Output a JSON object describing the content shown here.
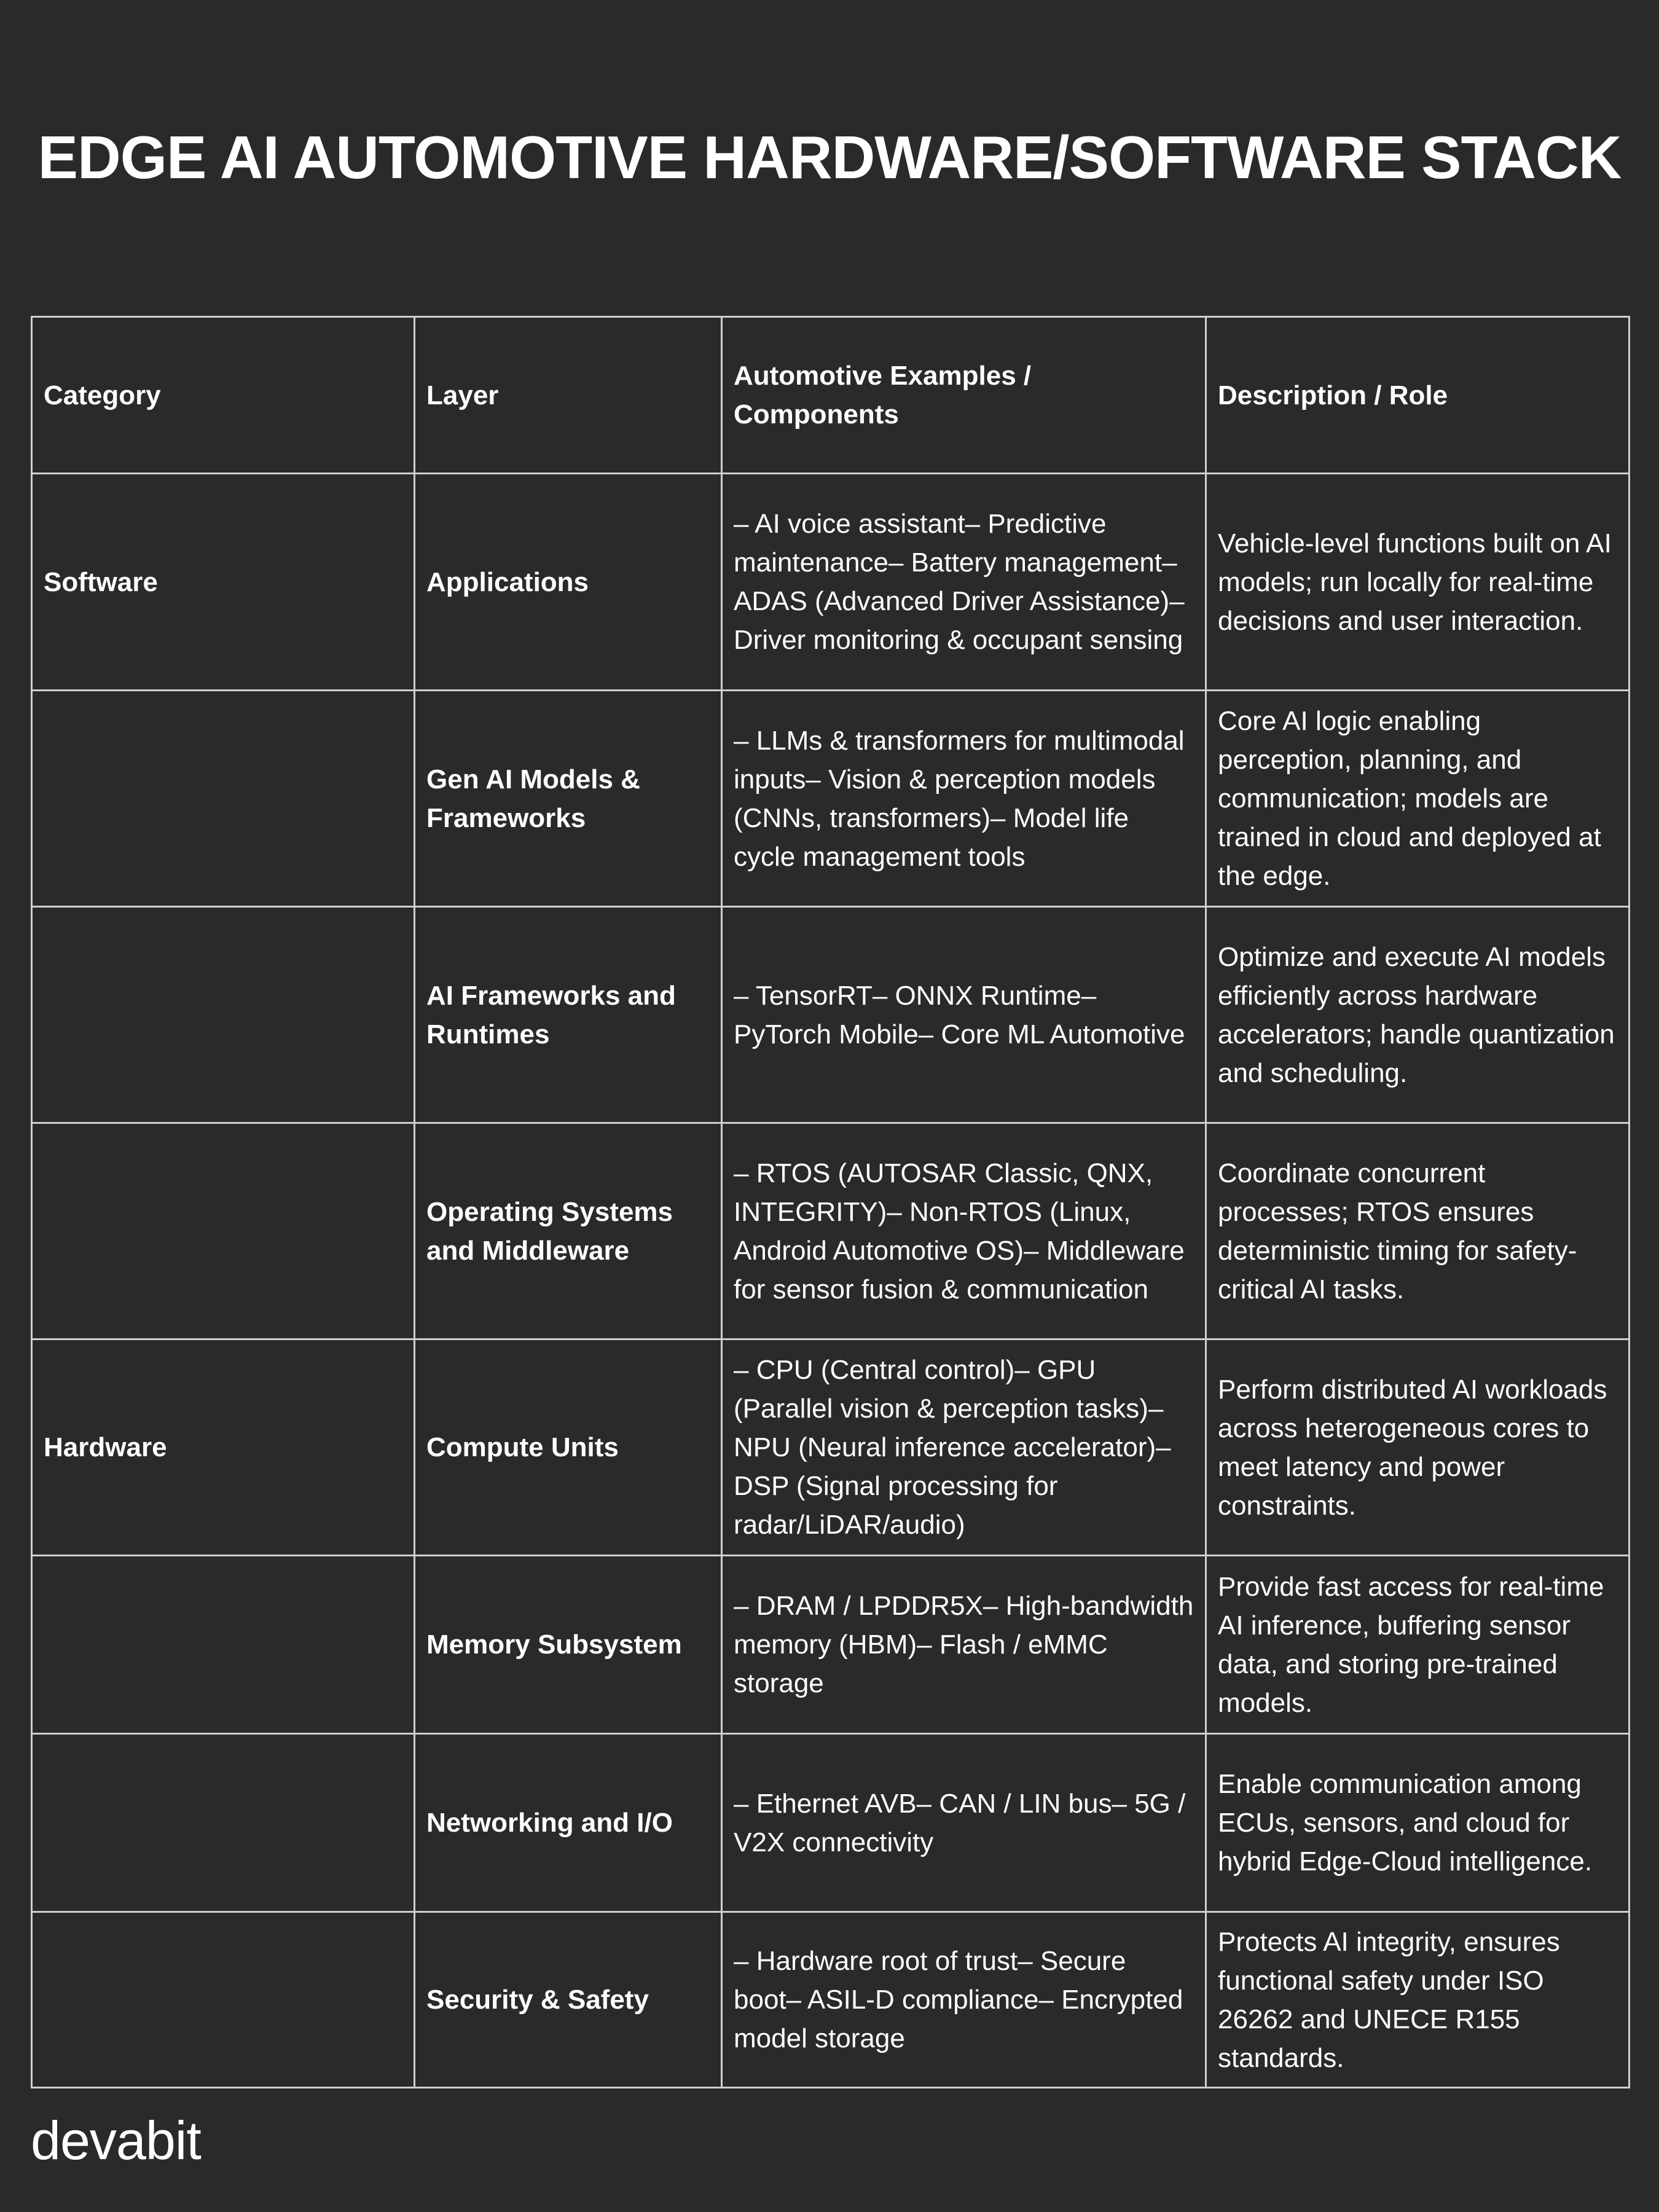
{
  "title": "EDGE AI AUTOMOTIVE HARDWARE/SOFTWARE STACK",
  "table": {
    "headers": [
      "Category",
      "Layer",
      "Automotive Examples / Components",
      "Description / Role"
    ],
    "rows": [
      {
        "category": "Software",
        "layer": "Applications",
        "examples": "– AI voice assistant– Predictive maintenance– Battery management– ADAS (Advanced Driver Assistance)– Driver monitoring & occupant sensing",
        "description": "Vehicle-level functions built on AI models; run locally for real-time decisions and user interaction."
      },
      {
        "category": "",
        "layer": "Gen AI Models & Frameworks",
        "examples": "– LLMs & transformers for multimodal inputs– Vision & perception models (CNNs, transformers)– Model life cycle management tools",
        "description": "Core AI logic enabling perception, planning, and communication; models are trained in cloud and deployed at the edge."
      },
      {
        "category": "",
        "layer": "AI Frameworks and Runtimes",
        "examples": "– TensorRT– ONNX Runtime– PyTorch Mobile– Core ML Automotive",
        "description": "Optimize and execute AI models efficiently across hardware accelerators; handle quantization and scheduling."
      },
      {
        "category": "",
        "layer": "Operating Systems and Middleware",
        "examples": "– RTOS (AUTOSAR Classic, QNX, INTEGRITY)– Non-RTOS (Linux, Android Automotive OS)– Middleware for sensor fusion & communication",
        "description": "Coordinate concurrent processes; RTOS ensures deterministic timing for safety-critical AI tasks."
      },
      {
        "category": "Hardware",
        "layer": "Compute Units",
        "examples": "– CPU (Central control)– GPU (Parallel vision & perception tasks)– NPU (Neural inference accelerator)– DSP (Signal processing for radar/LiDAR/audio)",
        "description": "Perform distributed AI workloads across heterogeneous cores to meet latency and power constraints."
      },
      {
        "category": "",
        "layer": "Memory Subsystem",
        "examples": "– DRAM / LPDDR5X– High-bandwidth memory (HBM)– Flash / eMMC storage",
        "description": "Provide fast access for real-time AI inference, buffering sensor data, and storing pre-trained models."
      },
      {
        "category": "",
        "layer": "Networking and I/O",
        "examples": "– Ethernet AVB– CAN / LIN bus– 5G / V2X connectivity",
        "description": "Enable communication among ECUs, sensors, and cloud for hybrid Edge-Cloud intelligence."
      },
      {
        "category": "",
        "layer": "Security & Safety",
        "examples": "– Hardware root of trust– Secure boot– ASIL-D compliance– Encrypted model storage",
        "description": "Protects AI integrity, ensures functional safety under ISO 26262 and UNECE R155 standards."
      }
    ]
  },
  "logo": "devabit",
  "colors": {
    "background": "#2a2a2a",
    "text": "#ffffff",
    "border": "#cfcfcf"
  }
}
